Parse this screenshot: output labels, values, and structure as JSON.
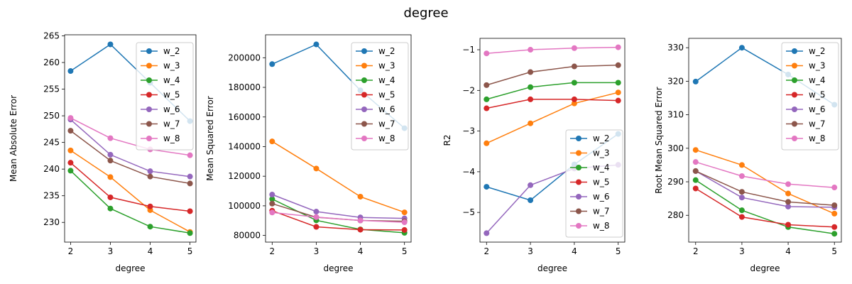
{
  "suptitle": "degree",
  "colors": {
    "w_2": "#1f77b4",
    "w_3": "#ff7f0e",
    "w_4": "#2ca02c",
    "w_5": "#d62728",
    "w_6": "#9467bd",
    "w_7": "#8c564b",
    "w_8": "#e377c2"
  },
  "chart_data": [
    {
      "type": "line",
      "xlabel": "degree",
      "ylabel": "Mean Absolute Error",
      "x": [
        2,
        3,
        4,
        5
      ],
      "xlim": [
        1.85,
        5.15
      ],
      "ylim": [
        226.3,
        265.2
      ],
      "xticks": [
        "2",
        "3",
        "4",
        "5"
      ],
      "yticks": [
        230,
        235,
        240,
        245,
        250,
        255,
        260,
        265
      ],
      "legend": "top-right",
      "series": [
        {
          "name": "w_2",
          "values": [
            258.4,
            263.4,
            256.2,
            249.0
          ]
        },
        {
          "name": "w_3",
          "values": [
            243.5,
            238.5,
            232.3,
            228.2
          ]
        },
        {
          "name": "w_4",
          "values": [
            239.7,
            232.6,
            229.2,
            228.0
          ]
        },
        {
          "name": "w_5",
          "values": [
            241.2,
            234.7,
            233.0,
            232.1
          ]
        },
        {
          "name": "w_6",
          "values": [
            249.3,
            242.7,
            239.6,
            238.6
          ]
        },
        {
          "name": "w_7",
          "values": [
            247.2,
            241.6,
            238.6,
            237.3
          ]
        },
        {
          "name": "w_8",
          "values": [
            249.6,
            245.8,
            243.7,
            242.6
          ]
        }
      ]
    },
    {
      "type": "line",
      "xlabel": "degree",
      "ylabel": "Mean Squared Error",
      "x": [
        2,
        3,
        4,
        5
      ],
      "xlim": [
        1.85,
        5.15
      ],
      "ylim": [
        75500,
        215500
      ],
      "xticks": [
        "2",
        "3",
        "4",
        "5"
      ],
      "yticks": [
        80000,
        100000,
        120000,
        140000,
        160000,
        180000,
        200000
      ],
      "legend": "top-right",
      "series": [
        {
          "name": "w_2",
          "values": [
            195700,
            209000,
            178000,
            152400
          ]
        },
        {
          "name": "w_3",
          "values": [
            143500,
            125200,
            106200,
            95600
          ]
        },
        {
          "name": "w_4",
          "values": [
            104600,
            90200,
            84100,
            81800
          ]
        },
        {
          "name": "w_5",
          "values": [
            96700,
            85800,
            83900,
            83700
          ]
        },
        {
          "name": "w_6",
          "values": [
            107600,
            96100,
            92200,
            91500
          ]
        },
        {
          "name": "w_7",
          "values": [
            101500,
            92300,
            90100,
            89600
          ]
        },
        {
          "name": "w_8",
          "values": [
            95500,
            92400,
            90100,
            88900
          ]
        }
      ]
    },
    {
      "type": "line",
      "xlabel": "degree",
      "ylabel": "R2",
      "x": [
        2,
        3,
        4,
        5
      ],
      "xlim": [
        1.85,
        5.15
      ],
      "ylim": [
        -5.73,
        -0.72
      ],
      "xticks": [
        "2",
        "3",
        "4",
        "5"
      ],
      "yticks": [
        -5,
        -4,
        -3,
        -2,
        -1
      ],
      "yticklabels": [
        "−5",
        "−4",
        "−3",
        "−2",
        "−1"
      ],
      "legend": "bottom-right",
      "series": [
        {
          "name": "w_2",
          "values": [
            -4.37,
            -4.7,
            -3.82,
            -3.07
          ]
        },
        {
          "name": "w_3",
          "values": [
            -3.3,
            -2.81,
            -2.32,
            -2.05
          ]
        },
        {
          "name": "w_4",
          "values": [
            -2.22,
            -1.92,
            -1.81,
            -1.81
          ]
        },
        {
          "name": "w_5",
          "values": [
            -2.44,
            -2.22,
            -2.22,
            -2.25
          ]
        },
        {
          "name": "w_6",
          "values": [
            -5.51,
            -4.33,
            -3.92,
            -3.83
          ]
        },
        {
          "name": "w_7",
          "values": [
            -1.87,
            -1.55,
            -1.41,
            -1.38
          ]
        },
        {
          "name": "w_8",
          "values": [
            -1.09,
            -1.0,
            -0.96,
            -0.94
          ]
        }
      ]
    },
    {
      "type": "line",
      "xlabel": "degree",
      "ylabel": "Root Mean Squared Error",
      "x": [
        2,
        3,
        4,
        5
      ],
      "xlim": [
        1.85,
        5.15
      ],
      "ylim": [
        272.0,
        332.8
      ],
      "xticks": [
        "2",
        "3",
        "4",
        "5"
      ],
      "yticks": [
        280,
        290,
        300,
        310,
        320,
        330
      ],
      "legend": "top-right",
      "series": [
        {
          "name": "w_2",
          "values": [
            319.9,
            330.0,
            322.0,
            313.0
          ]
        },
        {
          "name": "w_3",
          "values": [
            299.5,
            295.0,
            286.5,
            280.5
          ]
        },
        {
          "name": "w_4",
          "values": [
            290.5,
            281.5,
            276.5,
            274.5
          ]
        },
        {
          "name": "w_5",
          "values": [
            288.0,
            279.5,
            277.2,
            276.5
          ]
        },
        {
          "name": "w_6",
          "values": [
            293.2,
            285.3,
            282.6,
            282.4
          ]
        },
        {
          "name": "w_7",
          "values": [
            293.2,
            287.0,
            284.0,
            283.0
          ]
        },
        {
          "name": "w_8",
          "values": [
            295.9,
            291.7,
            289.3,
            288.3
          ]
        }
      ]
    }
  ]
}
